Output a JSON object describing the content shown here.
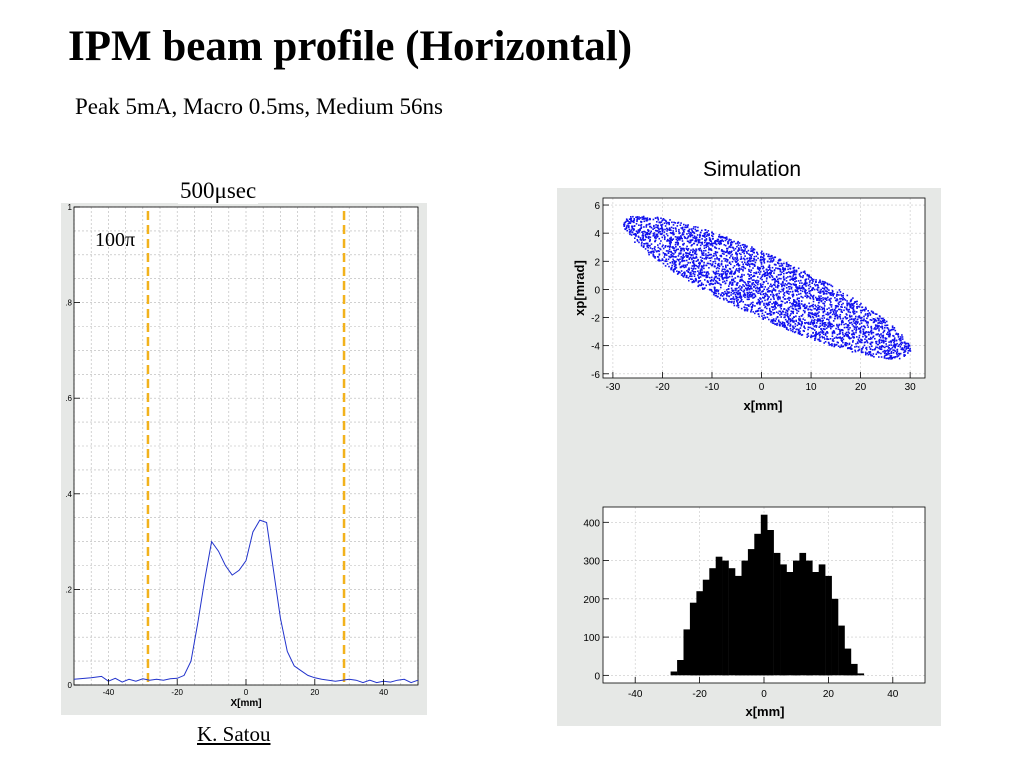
{
  "slide": {
    "title": "IPM beam profile (Horizontal)",
    "subtitle": "Peak 5mA, Macro 0.5ms, Medium 56ns",
    "simulation_label": "Simulation",
    "measurement_label": "500μsec",
    "credit": "K. Satou"
  },
  "colors": {
    "measured_line": "#2233cc",
    "marker_lines": "#f2b21c",
    "scatter_points": "#1010ee",
    "histogram_fill": "#000000",
    "panel_background": "#e6e8e6"
  },
  "chart_data": [
    {
      "type": "line",
      "title": "",
      "xlabel": "X[mm]",
      "ylabel": "",
      "xlim": [
        -50,
        50
      ],
      "ylim": [
        0,
        1
      ],
      "grid": true,
      "x_ticks": [
        -40,
        -20,
        0,
        20,
        40
      ],
      "y_ticks": [
        0,
        0.2,
        0.4,
        0.6,
        0.8,
        1
      ],
      "y_tick_labels": [
        "0",
        ".2",
        ".4",
        ".6",
        ".8",
        "1"
      ],
      "annotation": "100π",
      "markers": [
        -28.5,
        28.5
      ],
      "series": [
        {
          "x": [
            -50,
            -45,
            -42,
            -40,
            -38,
            -36,
            -34,
            -32,
            -30,
            -28,
            -26,
            -24,
            -22,
            -20,
            -18,
            -16,
            -14,
            -12,
            -10,
            -8,
            -6,
            -4,
            -2,
            0,
            2,
            4,
            6,
            8,
            10,
            12,
            14,
            16,
            18,
            20,
            22,
            24,
            26,
            28,
            30,
            32,
            34,
            36,
            38,
            40,
            42,
            44,
            46,
            48,
            50
          ],
          "y": [
            0.012,
            0.015,
            0.018,
            0.008,
            0.014,
            0.006,
            0.012,
            0.008,
            0.013,
            0.01,
            0.012,
            0.01,
            0.013,
            0.014,
            0.02,
            0.05,
            0.13,
            0.22,
            0.3,
            0.28,
            0.25,
            0.23,
            0.24,
            0.26,
            0.32,
            0.345,
            0.34,
            0.24,
            0.14,
            0.07,
            0.04,
            0.03,
            0.02,
            0.015,
            0.012,
            0.01,
            0.008,
            0.01,
            0.012,
            0.01,
            0.005,
            0.01,
            0.005,
            0.008,
            0.006,
            0.01,
            0.012,
            0.005,
            0.01
          ]
        }
      ]
    },
    {
      "type": "scatter",
      "title": "",
      "xlabel": "x[mm]",
      "ylabel": "xp[mrad]",
      "xlim": [
        -32,
        33
      ],
      "ylim": [
        -6.3,
        6.5
      ],
      "grid": true,
      "x_ticks": [
        -30,
        -20,
        -10,
        0,
        10,
        20,
        30
      ],
      "y_ticks": [
        -6,
        -4,
        -2,
        0,
        2,
        4,
        6
      ],
      "distribution": {
        "shape": "tilted-ellipse",
        "x_extent": [
          -28,
          30
        ],
        "xp_extent": [
          -6,
          6
        ],
        "slope_mrad_per_mm": -0.155,
        "point_count": 3500
      }
    },
    {
      "type": "bar",
      "title": "",
      "xlabel": "x[mm]",
      "ylabel": "",
      "xlim": [
        -50,
        50
      ],
      "ylim": [
        -20,
        440
      ],
      "grid": true,
      "x_ticks": [
        -40,
        -20,
        0,
        20,
        40
      ],
      "y_ticks": [
        0,
        100,
        200,
        300,
        400
      ],
      "x": [
        -28,
        -26,
        -24,
        -22,
        -20,
        -18,
        -16,
        -14,
        -12,
        -10,
        -8,
        -6,
        -4,
        -2,
        0,
        2,
        4,
        6,
        8,
        10,
        12,
        14,
        16,
        18,
        20,
        22,
        24,
        26,
        28,
        30
      ],
      "values": [
        10,
        40,
        120,
        190,
        220,
        250,
        280,
        310,
        300,
        280,
        260,
        300,
        330,
        370,
        420,
        380,
        320,
        290,
        270,
        300,
        320,
        300,
        270,
        290,
        260,
        200,
        130,
        70,
        30,
        5
      ]
    }
  ]
}
